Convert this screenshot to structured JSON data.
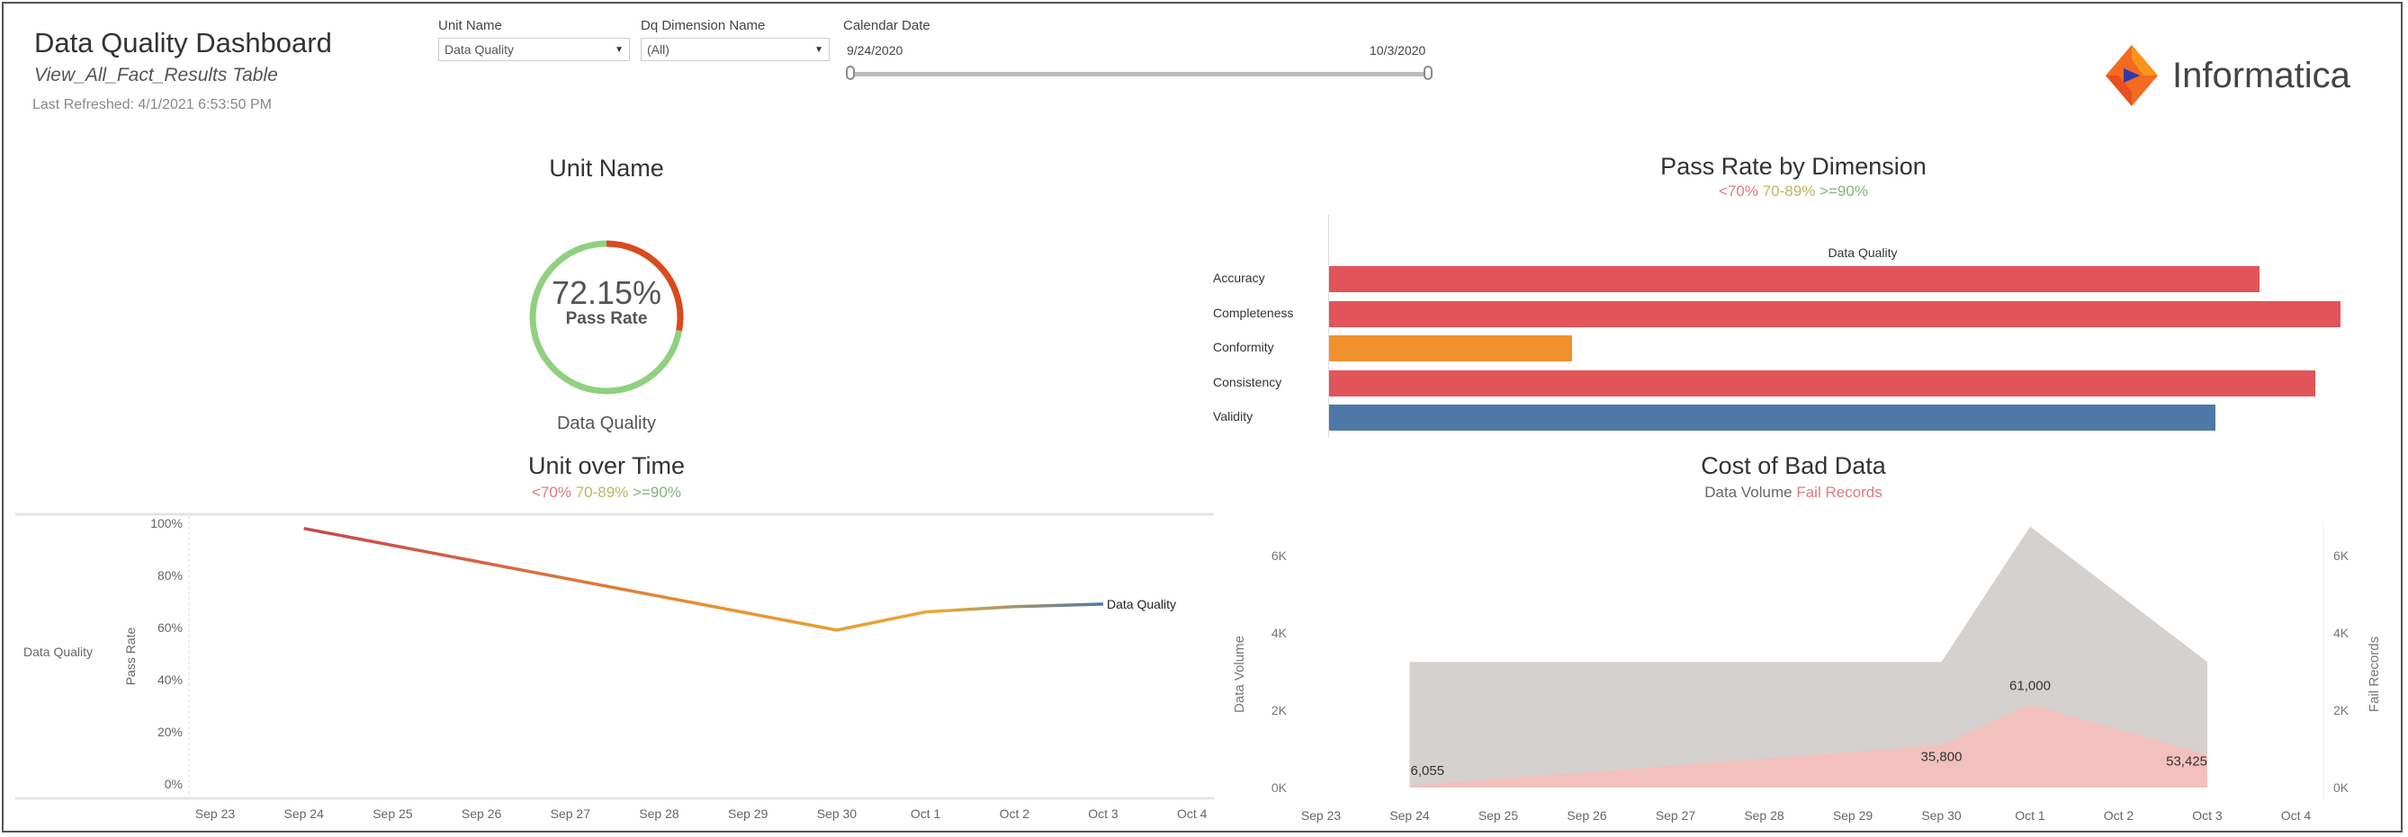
{
  "header": {
    "title": "Data Quality Dashboard",
    "subtitle": "View_All_Fact_Results Table",
    "last_refreshed": "Last Refreshed: 4/1/2021 6:53:50 PM"
  },
  "filters": {
    "unit_name": {
      "label": "Unit Name",
      "value": "Data Quality"
    },
    "dq_dimension": {
      "label": "Dq Dimension Name",
      "value": "(All)"
    },
    "calendar_date": {
      "label": "Calendar Date",
      "start": "9/24/2020",
      "end": "10/3/2020"
    }
  },
  "logo": {
    "text": "Informatica"
  },
  "legend": {
    "low": "<70%",
    "mid": "70-89%",
    "high": ">=90%",
    "colors": {
      "low": "#e07a7f",
      "mid": "#c2b461",
      "high": "#7fb77a"
    }
  },
  "gauge": {
    "title": "Unit Name",
    "value": "72.15%",
    "label": "Pass Rate",
    "caption": "Data Quality",
    "pass_fraction": 0.7215,
    "colors": {
      "pass": "#8fd17f",
      "fail": "#d94a1e"
    }
  },
  "chart_data": [
    {
      "type": "line",
      "title": "Unit over Time",
      "row_label": "Data Quality",
      "ylabel": "Pass Rate",
      "ylim": [
        0,
        100
      ],
      "yticks": [
        "0%",
        "20%",
        "40%",
        "60%",
        "80%",
        "100%"
      ],
      "xticks": [
        "Sep 23",
        "Sep 24",
        "Sep 25",
        "Sep 26",
        "Sep 27",
        "Sep 28",
        "Sep 29",
        "Sep 30",
        "Oct 1",
        "Oct 2",
        "Oct 3",
        "Oct 4"
      ],
      "series": [
        {
          "name": "Data Quality",
          "x": [
            "Sep 24",
            "Sep 30",
            "Oct 1",
            "Oct 2",
            "Oct 3"
          ],
          "values": [
            98,
            59,
            66,
            68,
            69
          ]
        }
      ]
    },
    {
      "type": "bar",
      "orientation": "horizontal",
      "title": "Pass Rate by Dimension",
      "column_header": "Data Quality",
      "categories": [
        "Accuracy",
        "Completeness",
        "Conformity",
        "Consistency",
        "Validity"
      ],
      "values": [
        0.92,
        1.0,
        0.24,
        0.975,
        0.876
      ],
      "colors": [
        "#e0545a",
        "#e0545a",
        "#f1912e",
        "#e0545a",
        "#4e79a7"
      ]
    },
    {
      "type": "area",
      "title": "Cost of Bad Data",
      "subtitle_parts": [
        "Data Volume",
        "Fail Records"
      ],
      "ylabel": "Data Volume",
      "y2label": "Fail Records",
      "ylim": [
        0,
        6.8
      ],
      "yticks": [
        "0K",
        "2K",
        "4K",
        "6K"
      ],
      "xticks": [
        "Sep 23",
        "Sep 24",
        "Sep 25",
        "Sep 26",
        "Sep 27",
        "Sep 28",
        "Sep 29",
        "Sep 30",
        "Oct 1",
        "Oct 2",
        "Oct 3",
        "Oct 4"
      ],
      "x": [
        "Sep 24",
        "Sep 30",
        "Oct 1",
        "Oct 3"
      ],
      "series": [
        {
          "name": "Data Volume",
          "values": [
            3.25,
            3.25,
            6.75,
            3.25
          ],
          "color": "#d5d1ce"
        },
        {
          "name": "Fail Records",
          "values": [
            0.05,
            1.1,
            2.15,
            0.85
          ],
          "color": "#f2c1bd"
        }
      ],
      "data_labels": [
        "6,055",
        "35,800",
        "61,000",
        "53,425"
      ]
    }
  ]
}
